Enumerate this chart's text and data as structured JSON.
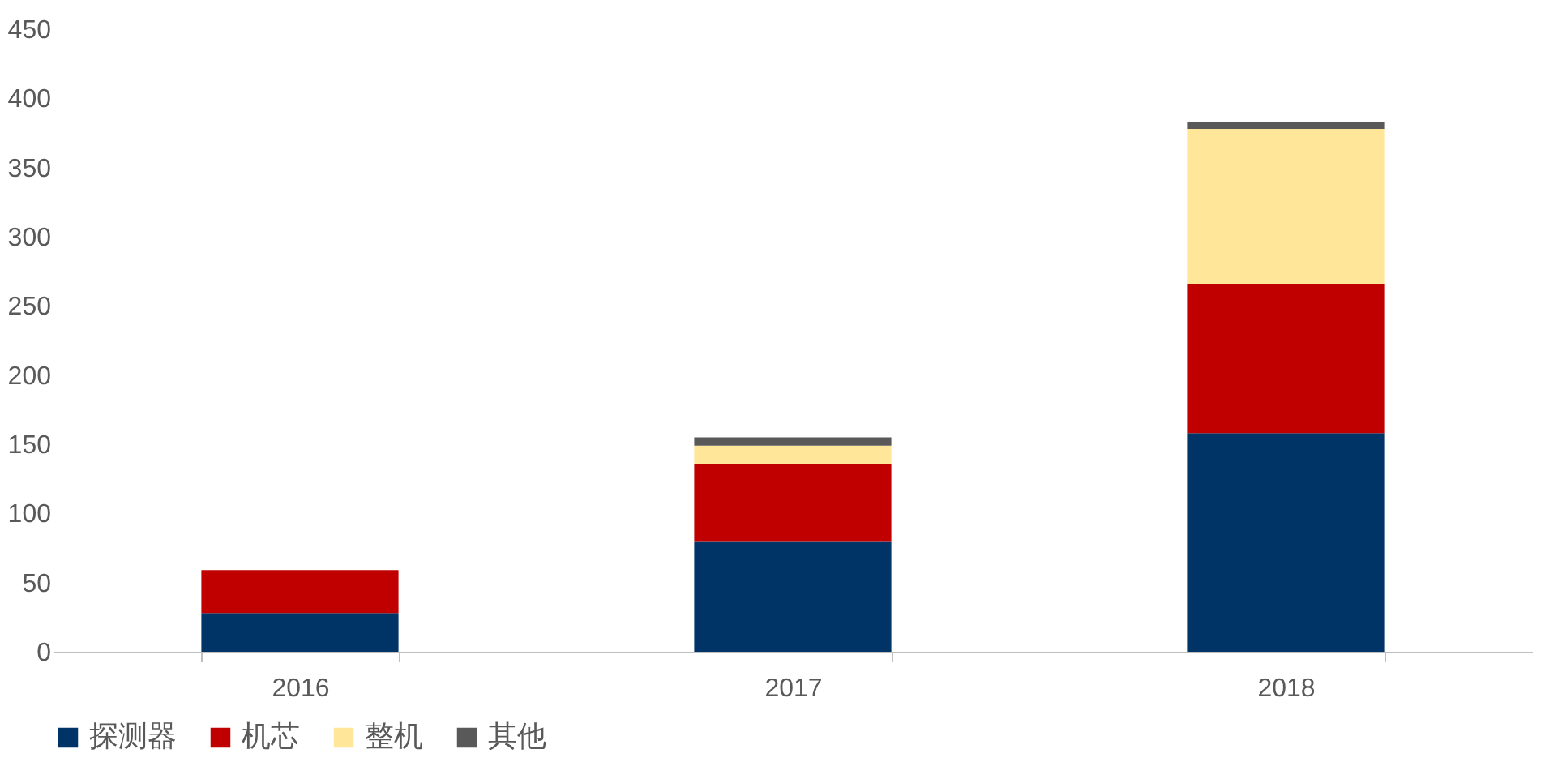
{
  "chart_data": {
    "type": "bar",
    "stacked": true,
    "categories": [
      "2016",
      "2017",
      "2018"
    ],
    "series": [
      {
        "name": "探测器",
        "color": "#003366",
        "values": [
          28,
          80,
          158
        ]
      },
      {
        "name": "机芯",
        "color": "#c00000",
        "values": [
          31,
          56,
          108
        ]
      },
      {
        "name": "整机",
        "color": "#ffe699",
        "values": [
          0,
          13,
          112
        ]
      },
      {
        "name": "其他",
        "color": "#595959",
        "values": [
          0,
          6,
          5
        ]
      }
    ],
    "ylim": [
      0,
      450
    ],
    "yticks": [
      0,
      50,
      100,
      150,
      200,
      250,
      300,
      350,
      400,
      450
    ],
    "grid": false,
    "legend": "bottom"
  }
}
